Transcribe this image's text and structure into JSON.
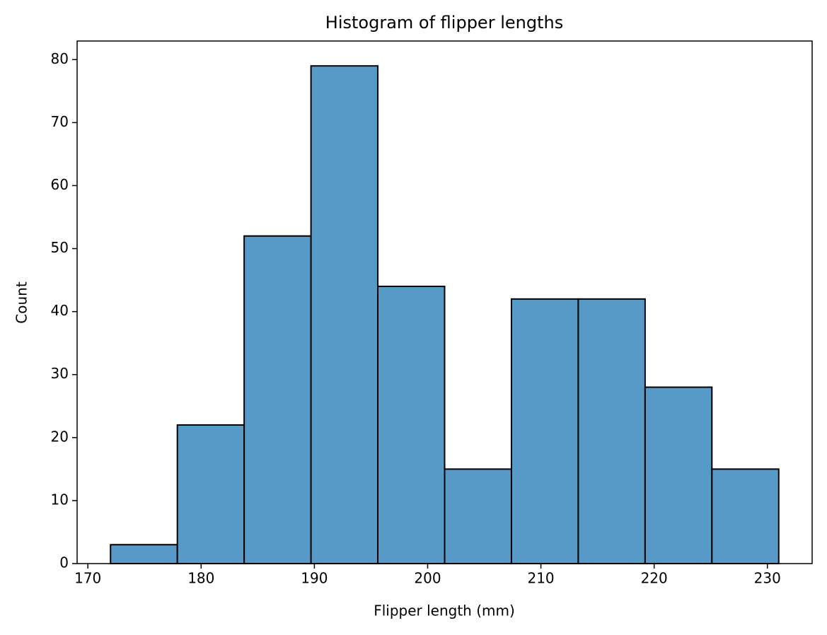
{
  "chart_data": {
    "type": "histogram",
    "title": "Histogram of flipper lengths",
    "x_label": "Flipper length (mm)",
    "y_label": "Count",
    "bins": [
      172,
      177.9,
      183.8,
      189.7,
      195.6,
      201.5,
      207.4,
      213.3,
      219.2,
      225.1,
      231
    ],
    "values": [
      3,
      22,
      52,
      79,
      44,
      15,
      42,
      42,
      28,
      15
    ],
    "color": "#5799c7",
    "edgecolor": "#000000",
    "xlim": [
      169.05,
      233.95
    ],
    "xticks": [
      170,
      180,
      190,
      200,
      210,
      220,
      230
    ],
    "ylim": [
      0,
      82.95
    ],
    "yticks": [
      0,
      10,
      20,
      30,
      40,
      50,
      60,
      70,
      80
    ],
    "grid": false
  }
}
